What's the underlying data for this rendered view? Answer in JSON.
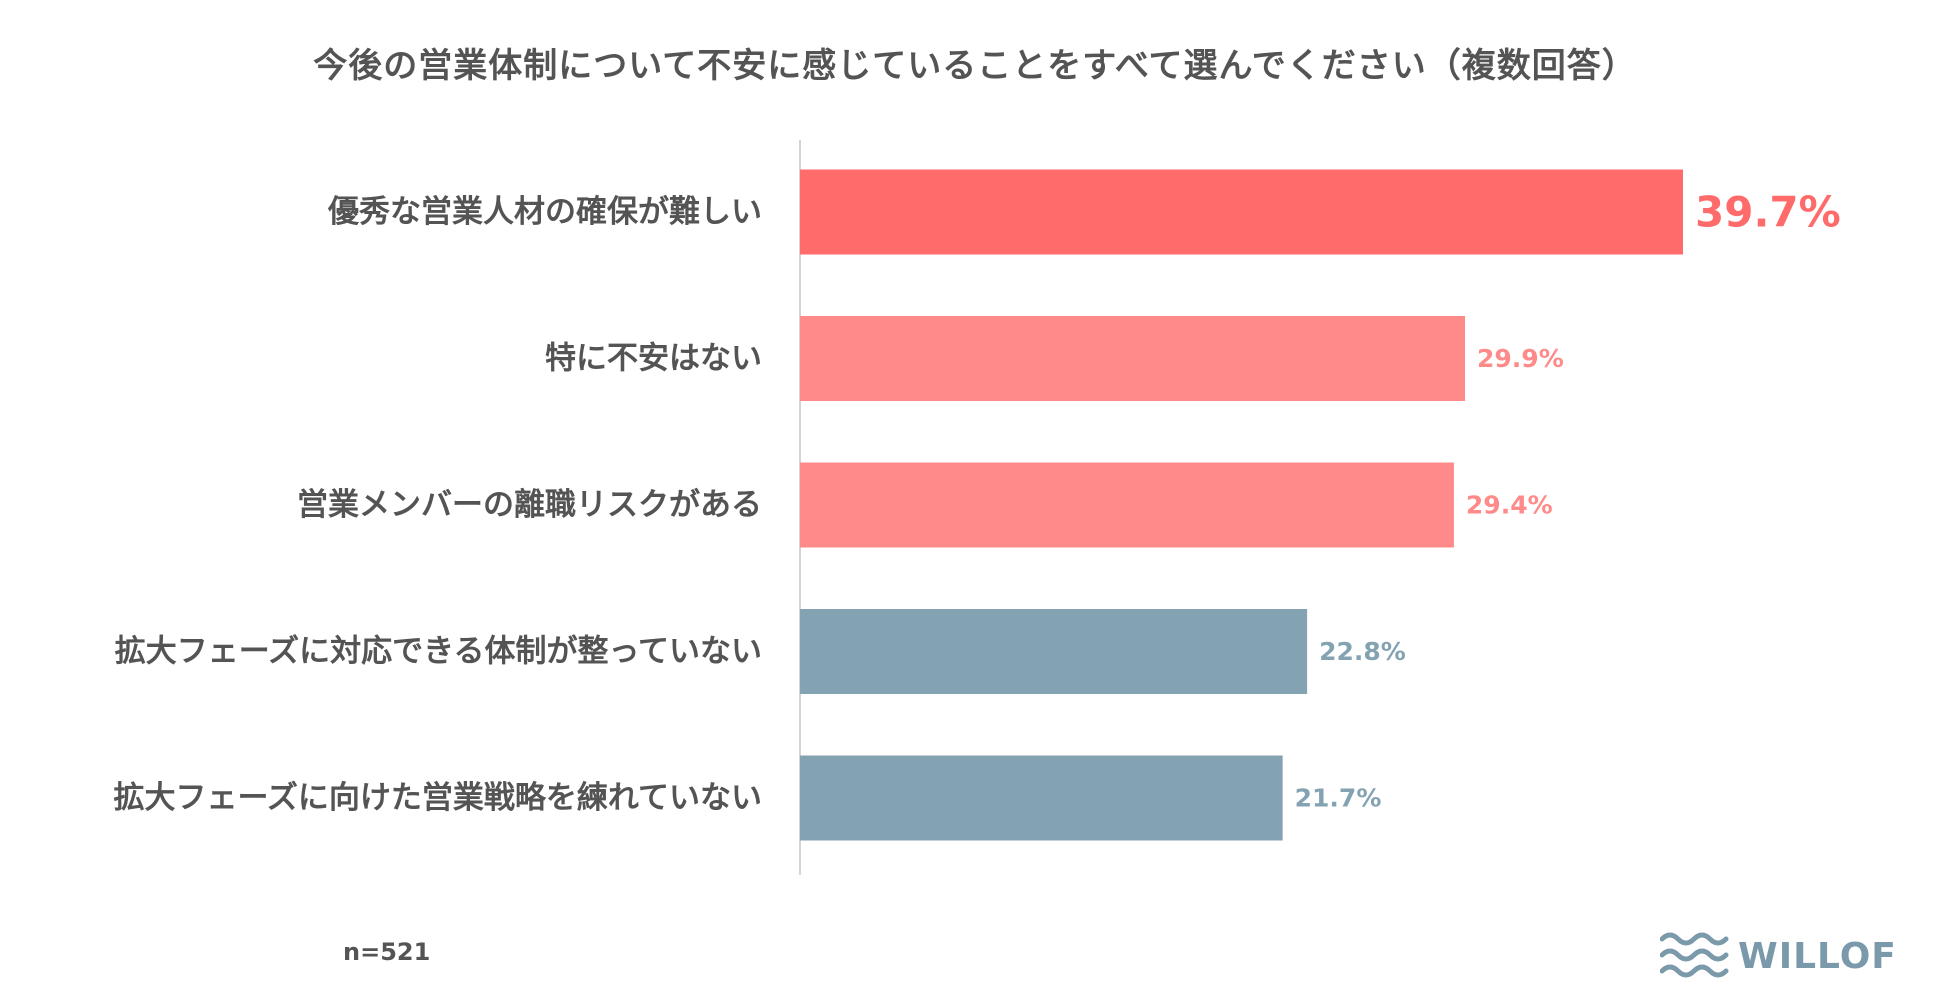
{
  "chart_data": {
    "type": "bar",
    "orientation": "horizontal",
    "title": "今後の営業体制について不安に感じていることをすべて選んでください（複数回答）",
    "categories": [
      "優秀な営業人材の確保が難しい",
      "特に不安はない",
      "営業メンバーの離職リスクがある",
      "拡大フェーズに対応できる体制が整っていない",
      "拡大フェーズに向けた営業戦略を練れていない"
    ],
    "values": [
      39.7,
      29.9,
      29.4,
      22.8,
      21.7
    ],
    "value_labels": [
      "39.7%",
      "29.9%",
      "29.4%",
      "22.8%",
      "21.7%"
    ],
    "colors": [
      "#ff6b6b",
      "#ff8a8a",
      "#ff8a8a",
      "#84a3b2",
      "#84a3b2"
    ],
    "xlim": [
      0,
      50
    ],
    "grid": false,
    "legend": "none"
  },
  "footer": {
    "sample_size": "n=521",
    "brand": "WILLOF"
  },
  "icons": {
    "brand_logo": "waves-icon"
  }
}
